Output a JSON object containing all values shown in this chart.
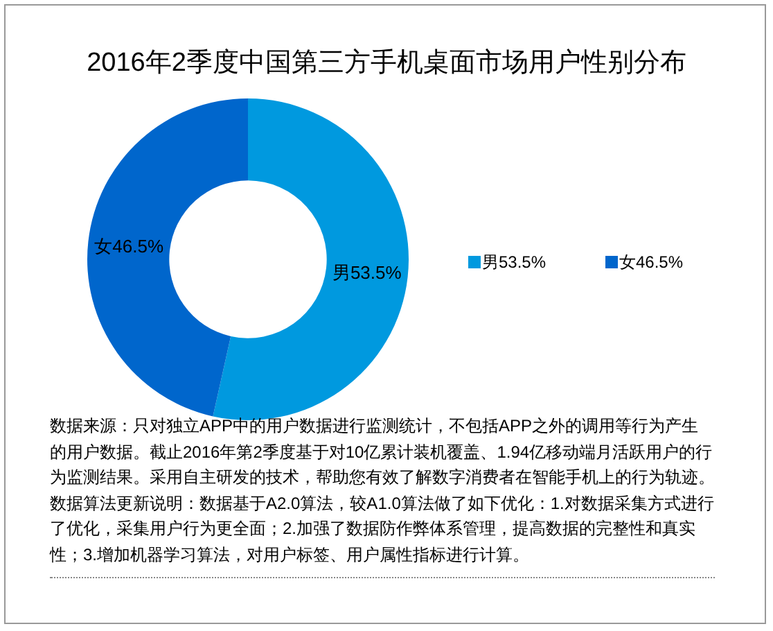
{
  "chart_data": {
    "type": "donut",
    "title": "2016年2季度中国第三方手机桌面市场用户性别分布",
    "categories": [
      "男",
      "女"
    ],
    "values": [
      53.5,
      46.5
    ],
    "value_labels": [
      "53.5%",
      "46.5%"
    ],
    "colors": [
      "#0099df",
      "#0066cc"
    ],
    "legend": "right",
    "annotations": [
      "数据来源：只对独立APP中的用户数据进行监测统计，不包括APP之外的调用等行为产生的用户数据。截止2016年第2季度基于对10亿累计装机覆盖、1.94亿移动端月活跃用户的行为监测结果。采用自主研发的技术，帮助您有效了解数字消费者在智能手机上的行为轨迹。数据算法更新说明：数据基于A2.0算法，较A1.0算法做了如下优化：1.对数据采集方式进行了优化，采集用户行为更全面；2.加强了数据防作弊体系管理，提高数据的完整性和真实性；3.增加机器学习算法，对用户标签、用户属性指标进行计算。"
    ]
  }
}
